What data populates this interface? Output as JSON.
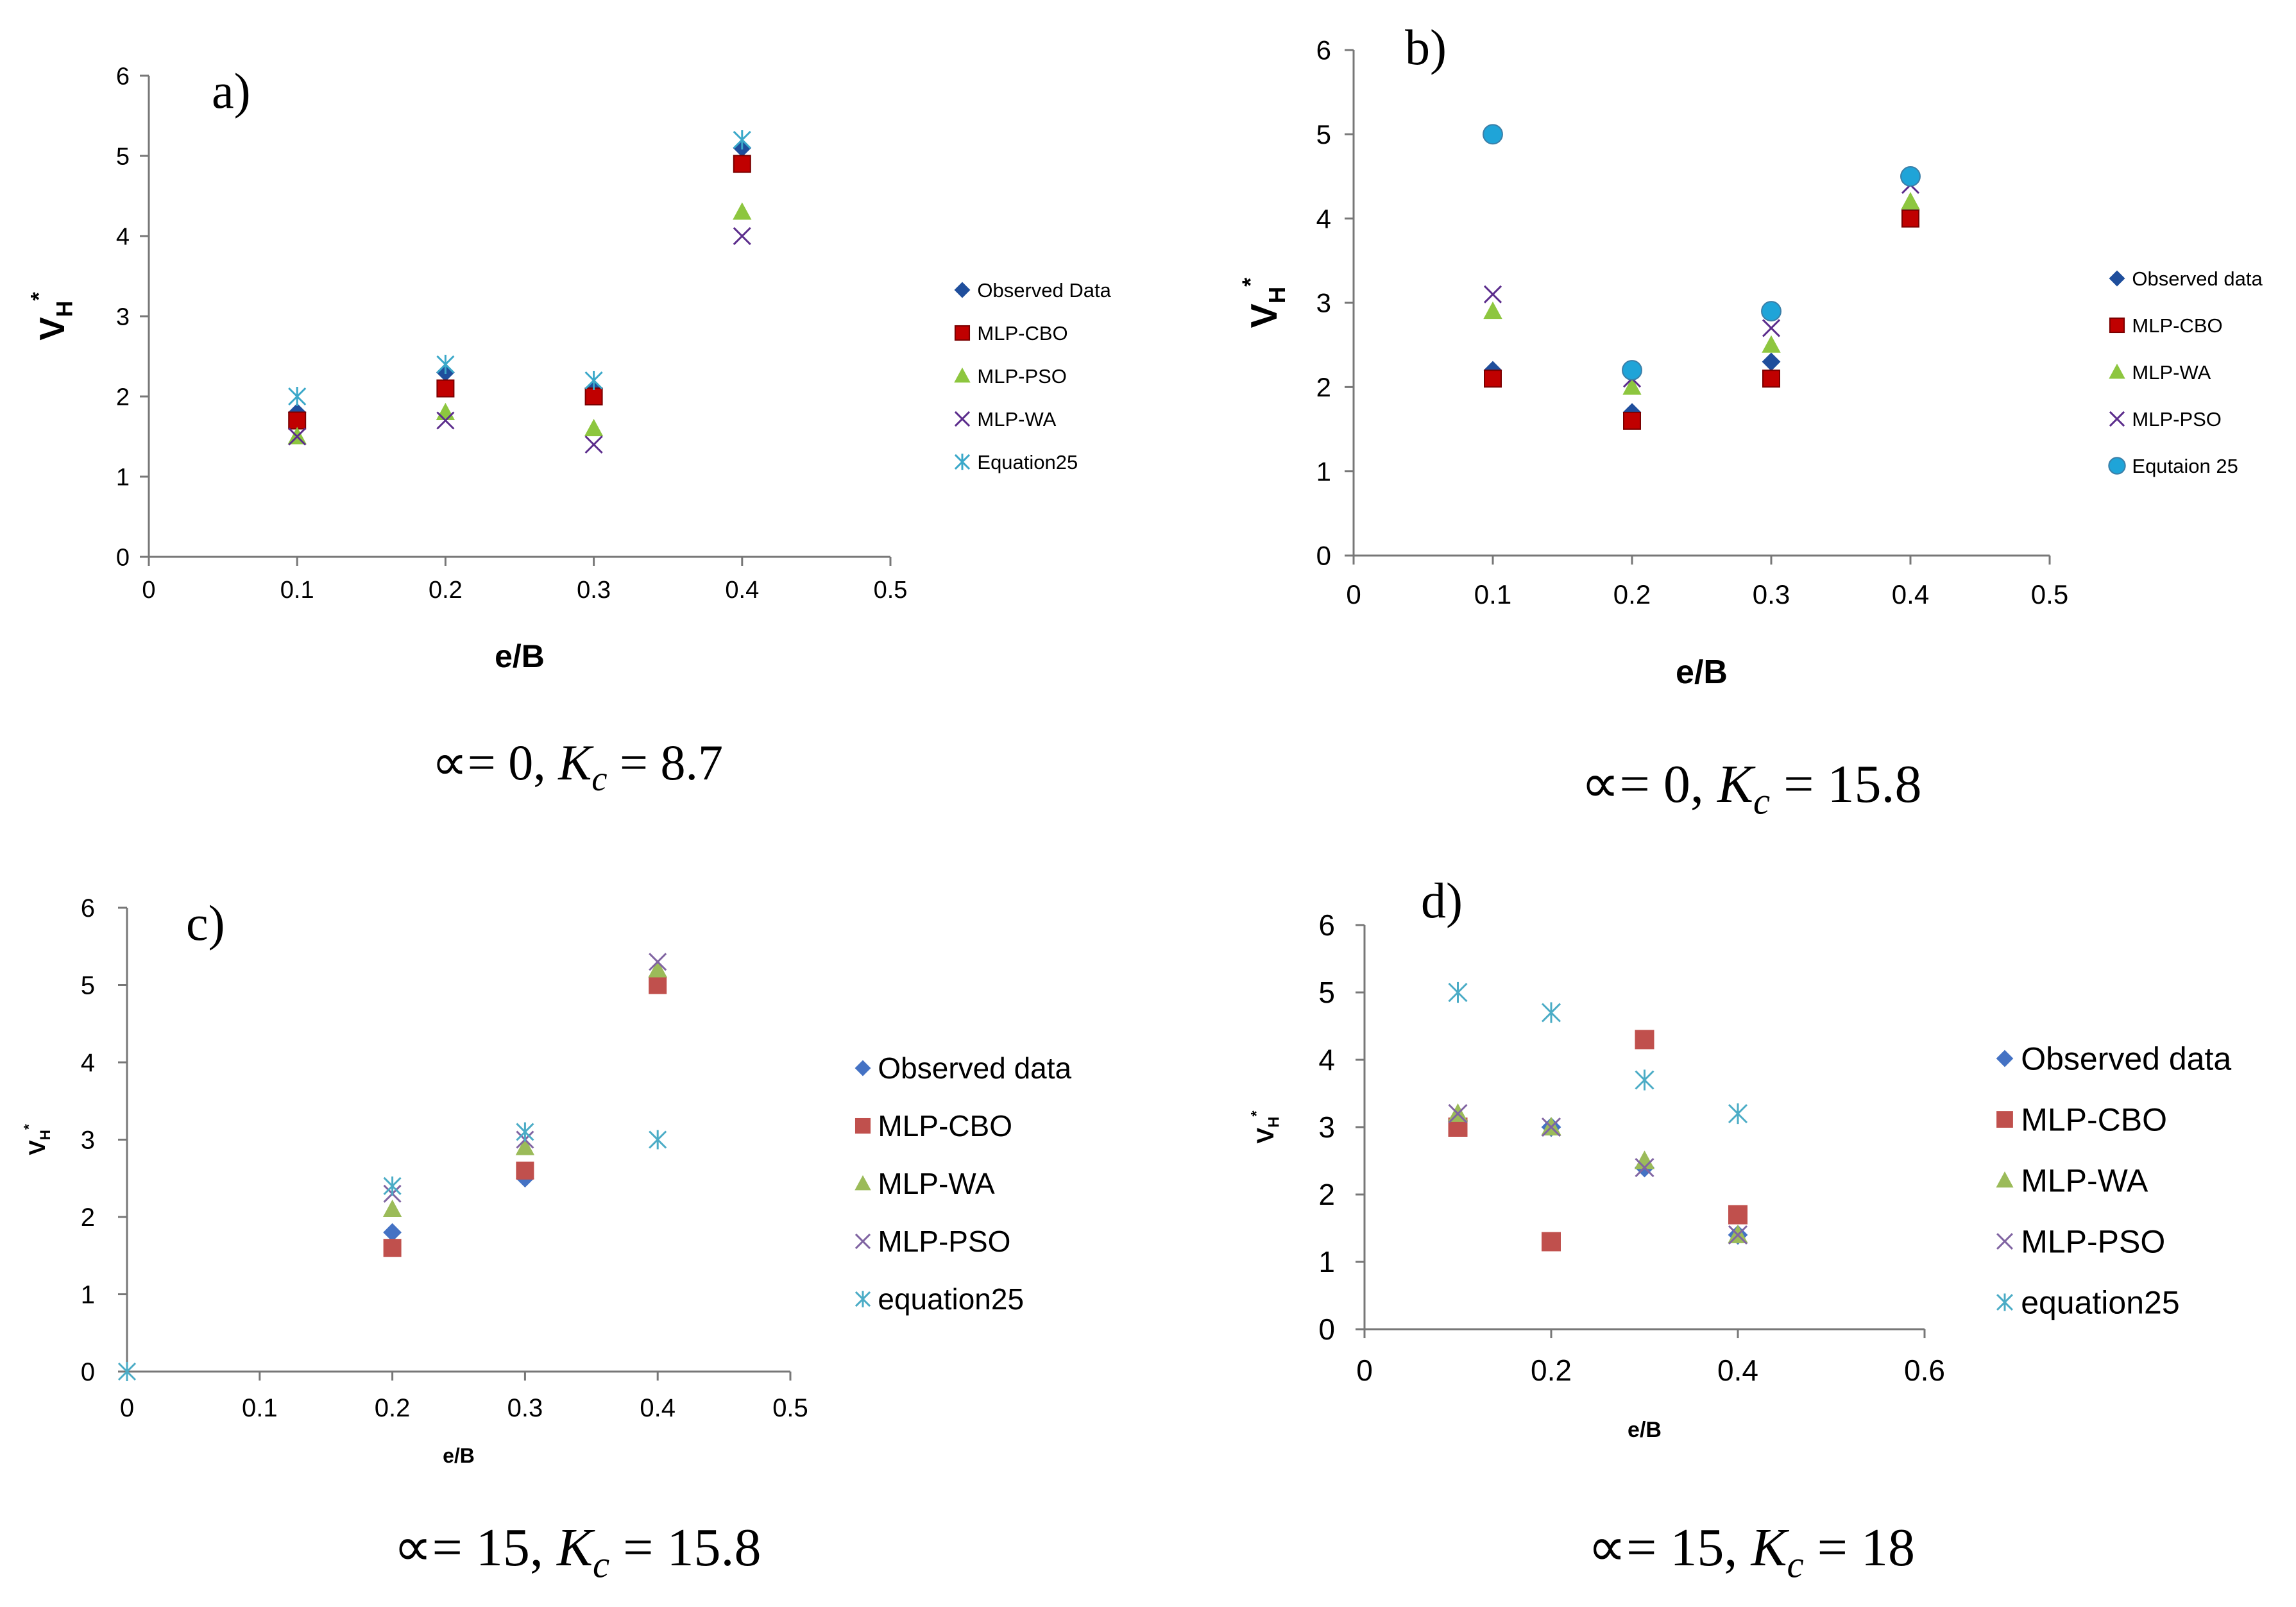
{
  "chart_data": [
    {
      "panel": "a)",
      "type": "scatter",
      "caption": {
        "prefix": "∝= 0, ",
        "k": "K",
        "sub": "c",
        "suffix": " = 8.7"
      },
      "xlabel": "e/B",
      "ylabel": {
        "main": "V",
        "sub": "H",
        "sup": "*"
      },
      "xlim": [
        0,
        0.5
      ],
      "ylim": [
        0,
        6
      ],
      "xticks": [
        "0",
        "0.1",
        "0.2",
        "0.3",
        "0.4",
        "0.5"
      ],
      "yticks": [
        "0",
        "1",
        "2",
        "3",
        "4",
        "5",
        "6"
      ],
      "legend_position": "right",
      "series": [
        {
          "name": "Observed Data",
          "marker": "diamond",
          "color": "#1f4e9c",
          "x": [
            0.1,
            0.2,
            0.3,
            0.4
          ],
          "y": [
            1.8,
            2.3,
            2.1,
            5.1
          ]
        },
        {
          "name": "MLP-CBO",
          "marker": "square",
          "color": "#c00000",
          "x": [
            0.1,
            0.2,
            0.3,
            0.4
          ],
          "y": [
            1.7,
            2.1,
            2.0,
            4.9
          ]
        },
        {
          "name": "MLP-PSO",
          "marker": "triangle",
          "color": "#8dc63f",
          "x": [
            0.1,
            0.2,
            0.3,
            0.4
          ],
          "y": [
            1.5,
            1.8,
            1.6,
            4.3
          ]
        },
        {
          "name": "MLP-WA",
          "marker": "x",
          "color": "#5b2c8c",
          "x": [
            0.1,
            0.2,
            0.3,
            0.4
          ],
          "y": [
            1.5,
            1.7,
            1.4,
            4.0
          ]
        },
        {
          "name": "Equation25",
          "marker": "asterisk",
          "color": "#3aa8c9",
          "x": [
            0.1,
            0.2,
            0.3,
            0.4
          ],
          "y": [
            2.0,
            2.4,
            2.2,
            5.2
          ]
        }
      ]
    },
    {
      "panel": "b)",
      "type": "scatter",
      "caption": {
        "prefix": "∝= 0, ",
        "k": "K",
        "sub": "c",
        "suffix": " = 15.8"
      },
      "xlabel": "e/B",
      "ylabel": {
        "main": "V",
        "sub": "H",
        "sup": "*"
      },
      "xlim": [
        0,
        0.5
      ],
      "ylim": [
        0,
        6
      ],
      "xticks": [
        "0",
        "0.1",
        "0.2",
        "0.3",
        "0.4",
        "0.5"
      ],
      "yticks": [
        "0",
        "1",
        "2",
        "3",
        "4",
        "5",
        "6"
      ],
      "legend_position": "right",
      "series": [
        {
          "name": "Observed data",
          "marker": "diamond",
          "color": "#1f4e9c",
          "x": [
            0.1,
            0.2,
            0.3,
            0.4
          ],
          "y": [
            2.2,
            1.7,
            2.3,
            4.1
          ]
        },
        {
          "name": "MLP-CBO",
          "marker": "square",
          "color": "#c00000",
          "x": [
            0.1,
            0.2,
            0.3,
            0.4
          ],
          "y": [
            2.1,
            1.6,
            2.1,
            4.0
          ]
        },
        {
          "name": "MLP-WA",
          "marker": "triangle",
          "color": "#8dc63f",
          "x": [
            0.1,
            0.2,
            0.3,
            0.4
          ],
          "y": [
            2.9,
            2.0,
            2.5,
            4.2
          ]
        },
        {
          "name": "MLP-PSO",
          "marker": "x",
          "color": "#5b2c8c",
          "x": [
            0.1,
            0.2,
            0.3,
            0.4
          ],
          "y": [
            3.1,
            2.1,
            2.7,
            4.4
          ]
        },
        {
          "name": "Equtaion 25",
          "marker": "circle",
          "color": "#1fa4d8",
          "x": [
            0.1,
            0.2,
            0.3,
            0.4
          ],
          "y": [
            5.0,
            2.2,
            2.9,
            4.5
          ]
        }
      ]
    },
    {
      "panel": "c)",
      "type": "scatter",
      "caption": {
        "prefix": "∝= 15, ",
        "k": "K",
        "sub": "c",
        "suffix": " = 15.8"
      },
      "xlabel": "e/B",
      "ylabel": {
        "main": "V",
        "sub": "H",
        "sup": "*"
      },
      "xlim": [
        0,
        0.5
      ],
      "ylim": [
        0,
        6
      ],
      "xticks": [
        "0",
        "0.1",
        "0.2",
        "0.3",
        "0.4",
        "0.5"
      ],
      "yticks": [
        "0",
        "1",
        "2",
        "3",
        "4",
        "5",
        "6"
      ],
      "legend_position": "right",
      "series": [
        {
          "name": "Observed data",
          "marker": "diamond",
          "color": "#4472c4",
          "x": [
            0.2,
            0.3,
            0.4
          ],
          "y": [
            1.8,
            2.5,
            5.1
          ]
        },
        {
          "name": "MLP-CBO",
          "marker": "square",
          "color": "#c0504d",
          "x": [
            0.2,
            0.3,
            0.4
          ],
          "y": [
            1.6,
            2.6,
            5.0
          ]
        },
        {
          "name": "MLP-WA",
          "marker": "triangle",
          "color": "#9bbb59",
          "x": [
            0.2,
            0.3,
            0.4
          ],
          "y": [
            2.1,
            2.9,
            5.2
          ]
        },
        {
          "name": "MLP-PSO",
          "marker": "x",
          "color": "#8064a2",
          "x": [
            0.2,
            0.3,
            0.4
          ],
          "y": [
            2.3,
            3.0,
            5.3
          ]
        },
        {
          "name": "equation25",
          "marker": "asterisk",
          "color": "#4bacc6",
          "x": [
            0,
            0.2,
            0.3,
            0.4
          ],
          "y": [
            0,
            2.4,
            3.1,
            3.0
          ]
        }
      ]
    },
    {
      "panel": "d)",
      "type": "scatter",
      "caption": {
        "prefix": "∝= 15, ",
        "k": "K",
        "sub": "c",
        "suffix": " = 18"
      },
      "xlabel": "e/B",
      "ylabel": {
        "main": "V",
        "sub": "H",
        "sup": "*"
      },
      "xlim": [
        0,
        0.6
      ],
      "ylim": [
        0,
        6
      ],
      "xticks": [
        "0",
        "0.2",
        "0.4",
        "0.6"
      ],
      "yticks": [
        "0",
        "1",
        "2",
        "3",
        "4",
        "5",
        "6"
      ],
      "legend_position": "right",
      "series": [
        {
          "name": "Observed data",
          "marker": "diamond",
          "color": "#4472c4",
          "x": [
            0.1,
            0.2,
            0.3,
            0.4
          ],
          "y": [
            3.1,
            3.0,
            2.4,
            1.4
          ]
        },
        {
          "name": "MLP-CBO",
          "marker": "square",
          "color": "#c0504d",
          "x": [
            0.1,
            0.2,
            0.3,
            0.4
          ],
          "y": [
            3.0,
            1.3,
            4.3,
            1.7
          ]
        },
        {
          "name": "MLP-WA",
          "marker": "triangle",
          "color": "#9bbb59",
          "x": [
            0.1,
            0.2,
            0.3,
            0.4
          ],
          "y": [
            3.2,
            3.0,
            2.5,
            1.4
          ]
        },
        {
          "name": "MLP-PSO",
          "marker": "x",
          "color": "#8064a2",
          "x": [
            0.1,
            0.2,
            0.3,
            0.4
          ],
          "y": [
            3.2,
            3.0,
            2.4,
            1.4
          ]
        },
        {
          "name": "equation25",
          "marker": "asterisk",
          "color": "#4bacc6",
          "x": [
            0.1,
            0.2,
            0.3,
            0.4
          ],
          "y": [
            5.0,
            4.7,
            3.7,
            3.2
          ]
        }
      ]
    }
  ]
}
